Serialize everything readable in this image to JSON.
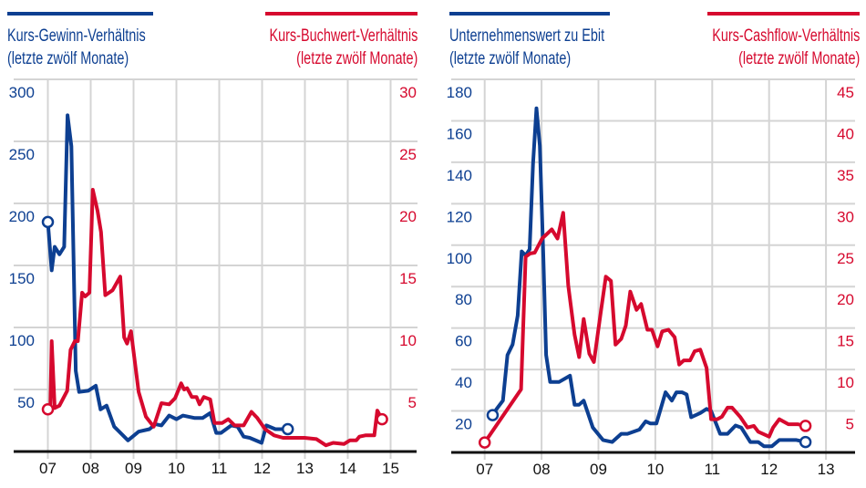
{
  "colors": {
    "blue": "#0d3f91",
    "red": "#d6092e",
    "grid": "#d4d4d4",
    "axis": "#111111"
  },
  "chart_data": [
    {
      "type": "line",
      "legend": {
        "left_title": "Kurs-Gewinn-Verhältnis",
        "left_subtitle": "(letzte zwölf Monate)",
        "right_title": "Kurs-Buchwert-Verhältnis",
        "right_subtitle": "(letzte zwölf Monate)"
      },
      "x_ticks": [
        "07",
        "08",
        "09",
        "10",
        "11",
        "12",
        "13",
        "14",
        "15"
      ],
      "xlim": [
        2007,
        2015
      ],
      "y_left": {
        "lim": [
          0,
          300
        ],
        "ticks": [
          "50",
          "100",
          "150",
          "200",
          "250",
          "300"
        ]
      },
      "y_right": {
        "lim": [
          0,
          30
        ],
        "ticks": [
          "5",
          "10",
          "15",
          "20",
          "25",
          "30"
        ]
      },
      "grid": true,
      "series": [
        {
          "name": "Kurs-Gewinn-Verhältnis",
          "axis": "left",
          "color": "blue",
          "x": [
            2007.0,
            2007.09,
            2007.16,
            2007.27,
            2007.38,
            2007.46,
            2007.55,
            2007.65,
            2007.73,
            2007.94,
            2008.12,
            2008.23,
            2008.37,
            2008.55,
            2008.87,
            2009.12,
            2009.37,
            2009.51,
            2009.65,
            2009.83,
            2010.0,
            2010.15,
            2010.43,
            2010.61,
            2010.79,
            2010.93,
            2011.04,
            2011.28,
            2011.43,
            2011.57,
            2011.71,
            2011.99,
            2012.1,
            2012.31,
            2012.6
          ],
          "y": [
            185,
            146,
            165,
            159,
            165,
            271,
            246,
            65,
            48,
            49,
            53,
            34,
            37,
            20,
            9,
            16,
            18,
            22,
            21,
            29,
            26,
            29,
            27,
            27,
            31,
            15,
            15,
            21,
            20,
            12,
            11,
            7,
            21,
            18,
            18
          ]
        },
        {
          "name": "Kurs-Buchwert-Verhältnis",
          "axis": "right",
          "color": "red",
          "x": [
            2007.0,
            2007.06,
            2007.09,
            2007.16,
            2007.27,
            2007.45,
            2007.53,
            2007.63,
            2007.7,
            2007.8,
            2007.87,
            2007.97,
            2008.05,
            2008.16,
            2008.24,
            2008.34,
            2008.51,
            2008.69,
            2008.78,
            2008.85,
            2008.94,
            2009.12,
            2009.29,
            2009.47,
            2009.65,
            2009.83,
            2009.97,
            2010.11,
            2010.18,
            2010.25,
            2010.36,
            2010.47,
            2010.54,
            2010.64,
            2010.79,
            2010.89,
            2011.07,
            2011.21,
            2011.36,
            2011.57,
            2011.75,
            2011.89,
            2012.07,
            2012.28,
            2012.49,
            2012.7,
            2012.99,
            2013.27,
            2013.49,
            2013.66,
            2013.91,
            2014.05,
            2014.2,
            2014.27,
            2014.41,
            2014.62,
            2014.69,
            2014.8
          ],
          "y": [
            3.4,
            3.8,
            8.9,
            3.5,
            3.7,
            4.9,
            8.2,
            8.9,
            8.9,
            12.8,
            12.5,
            12.8,
            21.1,
            19.4,
            17.7,
            12.6,
            13.0,
            14.1,
            9.2,
            8.7,
            9.7,
            4.8,
            2.8,
            2.0,
            3.9,
            3.8,
            4.3,
            5.5,
            5.0,
            5.1,
            4.4,
            4.4,
            3.8,
            4.4,
            4.2,
            2.3,
            2.3,
            2.6,
            2.1,
            2.1,
            3.2,
            2.7,
            1.8,
            1.3,
            1.1,
            1.1,
            1.1,
            1.0,
            0.5,
            0.7,
            0.6,
            0.9,
            0.9,
            1.2,
            1.3,
            1.3,
            3.3,
            2.6
          ]
        }
      ]
    },
    {
      "type": "line",
      "legend": {
        "left_title": "Unternehmenswert zu Ebit",
        "left_subtitle": "(letzte zwölf Monate)",
        "right_title": "Kurs-Cashflow-Verhältnis",
        "right_subtitle": "(letzte zwölf Monate)"
      },
      "x_ticks": [
        "07",
        "08",
        "09",
        "10",
        "11",
        "12",
        "13"
      ],
      "xlim": [
        2007,
        2013
      ],
      "y_left": {
        "lim": [
          0,
          180
        ],
        "ticks": [
          "20",
          "40",
          "60",
          "80",
          "100",
          "120",
          "140",
          "160",
          "180"
        ]
      },
      "y_right": {
        "lim": [
          0,
          45
        ],
        "ticks": [
          "5",
          "10",
          "15",
          "20",
          "25",
          "30",
          "35",
          "40",
          "45"
        ]
      },
      "grid": true,
      "series": [
        {
          "name": "Unternehmenswert zu Ebit",
          "axis": "left",
          "color": "blue",
          "x": [
            2007.14,
            2007.21,
            2007.32,
            2007.4,
            2007.49,
            2007.58,
            2007.65,
            2007.72,
            2007.79,
            2007.85,
            2007.91,
            2007.97,
            2008.03,
            2008.08,
            2008.15,
            2008.31,
            2008.5,
            2008.58,
            2008.66,
            2008.74,
            2008.9,
            2009.08,
            2009.24,
            2009.4,
            2009.51,
            2009.72,
            2009.83,
            2009.91,
            2010.02,
            2010.18,
            2010.29,
            2010.37,
            2010.47,
            2010.55,
            2010.63,
            2010.79,
            2010.9,
            2010.98,
            2011.14,
            2011.27,
            2011.41,
            2011.51,
            2011.67,
            2011.81,
            2011.91,
            2012.05,
            2012.18,
            2012.34,
            2012.48,
            2012.64
          ],
          "y": [
            18,
            21,
            25,
            47,
            52,
            66,
            97,
            95,
            98,
            139,
            166,
            148,
            95,
            47,
            34,
            34,
            37,
            23,
            23,
            25,
            12,
            6,
            5,
            9,
            9,
            11,
            15,
            14,
            14,
            29,
            25,
            29,
            29,
            28,
            17,
            19,
            21,
            20,
            9,
            9,
            13,
            12,
            5,
            5,
            3,
            3,
            6,
            6,
            6,
            5
          ]
        },
        {
          "name": "Kurs-Cashflow-Verhältnis",
          "axis": "right",
          "color": "red",
          "x": [
            2007.0,
            2007.64,
            2007.72,
            2007.8,
            2007.88,
            2008.01,
            2008.18,
            2008.28,
            2008.38,
            2008.47,
            2008.58,
            2008.66,
            2008.74,
            2008.84,
            2008.92,
            2009.03,
            2009.13,
            2009.22,
            2009.3,
            2009.4,
            2009.48,
            2009.56,
            2009.67,
            2009.75,
            2009.86,
            2009.94,
            2010.04,
            2010.12,
            2010.23,
            2010.34,
            2010.42,
            2010.5,
            2010.61,
            2010.69,
            2010.79,
            2010.9,
            2010.98,
            2011.09,
            2011.17,
            2011.27,
            2011.35,
            2011.49,
            2011.62,
            2011.73,
            2011.81,
            2012.0,
            2012.07,
            2012.18,
            2012.34,
            2012.5,
            2012.64
          ],
          "y": [
            1.2,
            7.6,
            23.6,
            24.0,
            24.1,
            25.8,
            26.9,
            25.8,
            28.9,
            20.1,
            14.2,
            11.5,
            16.1,
            11.9,
            10.9,
            16.4,
            21.2,
            20.7,
            13.0,
            13.7,
            15.3,
            19.4,
            17.2,
            17.9,
            14.8,
            14.8,
            12.8,
            14.6,
            14.8,
            13.9,
            10.6,
            11.1,
            11.1,
            12.2,
            12.4,
            10.2,
            4.0,
            4.0,
            4.3,
            5.4,
            5.4,
            4.3,
            3.0,
            3.2,
            2.5,
            1.9,
            3.0,
            4.0,
            3.4,
            3.4,
            3.2
          ]
        }
      ]
    }
  ]
}
